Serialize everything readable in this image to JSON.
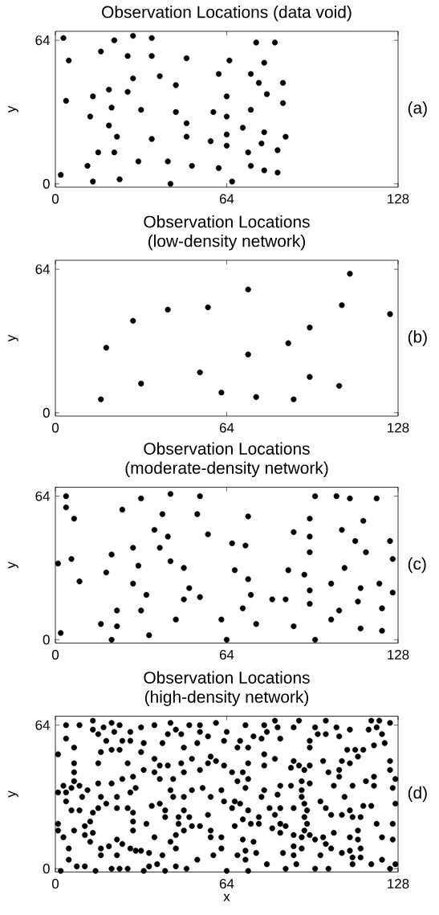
{
  "chart_data": [
    {
      "type": "scatter",
      "title": "Observation Locations (data void)",
      "ylabel": "y",
      "annotations": [
        "(a)"
      ],
      "color": "#000000",
      "marker": "circle",
      "xlim": [
        0,
        128
      ],
      "ylim": [
        -1.5,
        68
      ],
      "xticks": [
        0,
        64,
        128
      ],
      "yticks": [
        0,
        64
      ],
      "x": [
        3,
        5,
        4,
        2,
        22,
        29,
        36,
        17,
        27,
        36,
        49,
        39,
        29,
        45,
        20,
        27,
        14,
        21,
        13,
        32,
        45,
        49,
        20,
        23,
        36,
        49,
        16,
        22,
        31,
        42,
        12,
        51,
        14,
        24,
        43,
        61,
        66,
        75,
        82,
        65,
        78,
        61,
        73,
        76,
        85,
        64,
        79,
        85,
        73,
        59,
        64,
        70,
        78,
        64,
        86,
        58,
        77,
        64,
        83,
        72,
        73,
        78,
        83
      ],
      "values": [
        65,
        55,
        37,
        4,
        64,
        66,
        65,
        59,
        57,
        57,
        56,
        48,
        47,
        44,
        42,
        41,
        39,
        34,
        30,
        33,
        32,
        27,
        26,
        21,
        20,
        21,
        14,
        14,
        10,
        10,
        8,
        8,
        1,
        2,
        0,
        7,
        1,
        63,
        63,
        55,
        54,
        49,
        49,
        45,
        45,
        39,
        40,
        36,
        33,
        32,
        30,
        25,
        23,
        22,
        21,
        19,
        18,
        17,
        15,
        14,
        8,
        6,
        5
      ]
    },
    {
      "type": "scatter",
      "title": "Observation Locations",
      "subtitle": "(low-density network)",
      "ylabel": "y",
      "annotations": [
        "(b)"
      ],
      "color": "#000000",
      "marker": "circle",
      "xlim": [
        0,
        128
      ],
      "ylim": [
        -1.5,
        68
      ],
      "xticks": [
        0,
        64,
        128
      ],
      "yticks": [
        0,
        64
      ],
      "x": [
        110,
        72,
        42,
        57,
        29,
        107,
        125,
        95,
        19,
        87,
        72,
        54,
        32,
        95,
        106,
        17,
        62,
        75,
        89
      ],
      "values": [
        62,
        55,
        46,
        47,
        41,
        48,
        44,
        38,
        29,
        31,
        26,
        18,
        13,
        16,
        12,
        6,
        9,
        7,
        6
      ]
    },
    {
      "type": "scatter",
      "title": "Observation Locations",
      "subtitle": "(moderate-density network)",
      "ylabel": "y",
      "annotations": [
        "(c)"
      ],
      "color": "#000000",
      "marker": "circle",
      "xlim": [
        0,
        128
      ],
      "ylim": [
        -1.5,
        68
      ],
      "xticks": [
        0,
        64,
        128
      ],
      "yticks": [
        0,
        64
      ],
      "x": [
        4,
        4,
        7,
        1,
        6,
        9,
        2,
        32,
        25,
        43,
        54,
        40,
        53,
        37,
        42,
        57,
        29,
        39,
        21,
        43,
        31,
        19,
        48,
        66,
        71,
        72,
        67,
        72,
        29,
        50,
        34,
        48,
        54,
        73,
        81,
        86,
        23,
        32,
        70,
        17,
        23,
        45,
        62,
        75,
        21,
        35,
        64,
        97,
        89,
        97,
        105,
        110,
        120,
        95,
        115,
        89,
        95,
        107,
        112,
        125,
        95,
        116,
        126,
        87,
        93,
        108,
        103,
        114,
        121,
        95,
        126,
        95,
        113,
        106,
        122,
        103,
        114,
        122
      ],
      "values": [
        64,
        59,
        54,
        34,
        36,
        26,
        3,
        63,
        58,
        65,
        64,
        56,
        56,
        49,
        46,
        47,
        41,
        41,
        38,
        35,
        33,
        30,
        32,
        43,
        42,
        55,
        31,
        27,
        25,
        23,
        20,
        18,
        19,
        20,
        18,
        18,
        13,
        13,
        14,
        7,
        6,
        9,
        9,
        7,
        0,
        2,
        0,
        0,
        6,
        64,
        64,
        63,
        63,
        54,
        53,
        48,
        46,
        49,
        44,
        44,
        39,
        39,
        36,
        31,
        29,
        32,
        25,
        23,
        25,
        22,
        21,
        16,
        17,
        13,
        14,
        9,
        5,
        4
      ]
    },
    {
      "type": "scatter",
      "title": "Observation Locations",
      "subtitle": "(high-density network)",
      "xlabel": "x",
      "ylabel": "y",
      "annotations": [
        "(d)"
      ],
      "color": "#000000",
      "marker": "circle",
      "xlim": [
        0,
        128
      ],
      "ylim": [
        -1.5,
        68
      ],
      "xticks": [
        0,
        64,
        128
      ],
      "yticks": [
        0,
        64
      ],
      "x": [
        4,
        9,
        14,
        14,
        18,
        21,
        24,
        16,
        19,
        22,
        25,
        28,
        28,
        32,
        37,
        43,
        45,
        42,
        47,
        50,
        54,
        54,
        60,
        64,
        57,
        63,
        4,
        7,
        17,
        21,
        24,
        32,
        33,
        40,
        48,
        53,
        1,
        7,
        7,
        7,
        16,
        27,
        33,
        37,
        37,
        39,
        42,
        39,
        44,
        47,
        48,
        51,
        54,
        57,
        58,
        60,
        63,
        3,
        1,
        4,
        6,
        9,
        4,
        12,
        16,
        21,
        25,
        29,
        28,
        30,
        17,
        19,
        23,
        10,
        6,
        9,
        16,
        14,
        23,
        27,
        29,
        29,
        36,
        39,
        41,
        43,
        44,
        48,
        51,
        55,
        58,
        62,
        63,
        41,
        46,
        50,
        48,
        57,
        1,
        1,
        7,
        3,
        11,
        13,
        11,
        14,
        13,
        17,
        20,
        23,
        25,
        29,
        28,
        32,
        34,
        35,
        40,
        37,
        43,
        45,
        46,
        48,
        51,
        54,
        58,
        58,
        62,
        62,
        59,
        53,
        45,
        5,
        5,
        17,
        23,
        30,
        71,
        78,
        79,
        83,
        82,
        91,
        89,
        97,
        98,
        101,
        101,
        105,
        106,
        110,
        117,
        120,
        118,
        121,
        122,
        125,
        69,
        72,
        68,
        74,
        77,
        84,
        95,
        95,
        109,
        112,
        115,
        119,
        123,
        78,
        78,
        82,
        72,
        66,
        70,
        68,
        72,
        71,
        89,
        88,
        91,
        93,
        95,
        100,
        107,
        110,
        113,
        106,
        102,
        106,
        104,
        111,
        116,
        119,
        119,
        125,
        125,
        127,
        126,
        92,
        95,
        84,
        88,
        78,
        77,
        83,
        92,
        92,
        67,
        69,
        72,
        66,
        99,
        101,
        103,
        108,
        107,
        110,
        111,
        114,
        115,
        118,
        120,
        126,
        127,
        80,
        84,
        82,
        89,
        93,
        94,
        93,
        94,
        76,
        76,
        73,
        67,
        70,
        81,
        84,
        86,
        84,
        93,
        95,
        89,
        92,
        97,
        100,
        104,
        110,
        113,
        113,
        122,
        126,
        70,
        74,
        71,
        75,
        89,
        92,
        89,
        85,
        99,
        101,
        103,
        107,
        110,
        111,
        114,
        114,
        122,
        68,
        71,
        2,
        8,
        11,
        15,
        21,
        24,
        27,
        33,
        35,
        38,
        41,
        45,
        49,
        64,
        72,
        79,
        86,
        90,
        97,
        102,
        111,
        118,
        125,
        127
      ],
      "values": [
        64,
        64,
        66,
        62,
        63,
        65,
        64,
        60,
        57,
        61,
        57,
        61,
        57,
        63,
        64,
        65,
        62,
        60,
        60,
        64,
        64,
        61,
        65,
        61,
        59,
        57,
        58,
        54,
        52,
        53,
        53,
        52,
        56,
        56,
        54,
        56,
        51,
        47,
        43,
        39,
        47,
        47,
        44,
        49,
        43,
        46,
        46,
        40,
        40,
        47,
        43,
        49,
        44,
        47,
        50,
        48,
        46,
        37,
        34,
        34,
        36,
        37,
        30,
        35,
        38,
        38,
        40,
        41,
        34,
        36,
        32,
        29,
        32,
        32,
        26,
        26,
        27,
        25,
        27,
        27,
        25,
        21,
        28,
        29,
        26,
        35,
        32,
        32,
        35,
        36,
        32,
        35,
        30,
        23,
        23,
        23,
        26,
        24,
        20,
        17,
        17,
        14,
        19,
        21,
        15,
        16,
        12,
        9,
        10,
        13,
        11,
        17,
        9,
        8,
        20,
        7,
        6,
        14,
        12,
        15,
        20,
        17,
        19,
        19,
        17,
        14,
        14,
        9,
        6,
        4,
        9,
        9,
        4,
        6,
        6,
        8,
        64,
        64,
        61,
        63,
        66,
        66,
        63,
        63,
        60,
        60,
        66,
        63,
        59,
        62,
        62,
        63,
        66,
        66,
        60,
        65,
        57,
        54,
        54,
        59,
        58,
        58,
        57,
        54,
        53,
        53,
        53,
        55,
        56,
        51,
        46,
        49,
        47,
        43,
        43,
        39,
        40,
        36,
        48,
        45,
        46,
        44,
        46,
        48,
        48,
        47,
        50,
        44,
        43,
        41,
        37,
        37,
        39,
        41,
        37,
        48,
        44,
        40,
        36,
        39,
        38,
        37,
        37,
        35,
        32,
        33,
        35,
        32,
        30,
        29,
        26,
        27,
        30,
        27,
        24,
        32,
        24,
        26,
        23,
        23,
        28,
        28,
        20,
        20,
        29,
        27,
        27,
        24,
        27,
        29,
        26,
        23,
        20,
        23,
        20,
        20,
        19,
        22,
        18,
        20,
        19,
        16,
        17,
        15,
        15,
        14,
        13,
        14,
        16,
        14,
        17,
        13,
        14,
        13,
        13,
        12,
        8,
        7,
        10,
        9,
        6,
        7,
        6,
        11,
        9,
        7,
        8,
        5,
        9,
        5,
        4,
        6,
        4,
        -1,
        1,
        1,
        -1,
        0,
        0,
        0,
        -1,
        1,
        2,
        -1,
        1,
        0,
        -1,
        -1,
        2,
        0,
        2,
        0,
        0,
        2,
        2,
        0,
        2
      ]
    }
  ]
}
